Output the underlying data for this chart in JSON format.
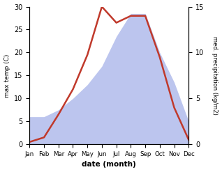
{
  "months": [
    "Jan",
    "Feb",
    "Mar",
    "Apr",
    "May",
    "Jun",
    "Jul",
    "Aug",
    "Sep",
    "Oct",
    "Nov",
    "Dec"
  ],
  "temperature": [
    0.5,
    1.5,
    6.5,
    12.0,
    19.5,
    30.0,
    26.5,
    28.0,
    28.0,
    19.0,
    8.0,
    1.0
  ],
  "precipitation": [
    6.0,
    6.0,
    7.5,
    10.0,
    13.0,
    17.0,
    23.5,
    28.5,
    28.5,
    20.0,
    13.5,
    5.0
  ],
  "temp_color": "#c0392b",
  "precip_fill_color": "#bcc5ee",
  "temp_ylim": [
    0,
    30
  ],
  "precip_ylim": [
    0,
    30
  ],
  "right_ylim": [
    0,
    15
  ],
  "temp_yticks": [
    0,
    5,
    10,
    15,
    20,
    25,
    30
  ],
  "right_yticks": [
    0,
    5,
    10,
    15
  ],
  "ylabel_left": "max temp (C)",
  "ylabel_right": "med. precipitation (kg/m2)",
  "xlabel": "date (month)",
  "bg_color": "#ffffff"
}
